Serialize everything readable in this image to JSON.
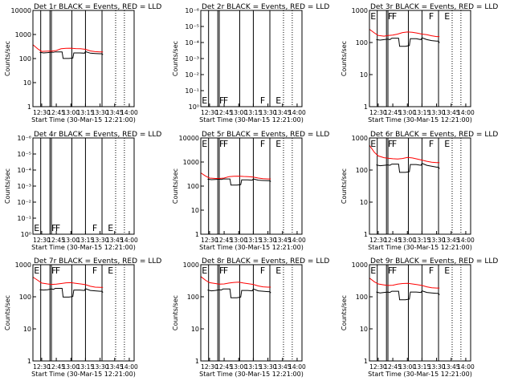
{
  "figure": {
    "xlabel": "Start Time (30-Mar-15 12:21:00)",
    "ylabel": "Counts/sec",
    "x_ticks": [
      "12:30",
      "12:45",
      "13:00",
      "13:15",
      "13:30",
      "13:45",
      "14:00"
    ],
    "x_range": [
      "12:21:00",
      "14:05:00"
    ],
    "colors": {
      "events": "#000000",
      "lld": "#ff0000",
      "axes": "#000000"
    }
  },
  "chart_data": [
    {
      "type": "line",
      "title": "Det 1r BLACK = Events, RED = LLD",
      "yscale": "log",
      "ylim": [
        1,
        12000
      ],
      "y_ticks": [
        "1",
        "10",
        "100",
        "1000",
        "10000"
      ],
      "markers": [],
      "series": [
        {
          "color": "#ff0000",
          "x": [
            "12:21",
            "12:26",
            "12:30",
            "12:36",
            "12:40",
            "12:45",
            "12:50",
            "12:55",
            "13:00",
            "13:05",
            "13:10",
            "13:15",
            "13:20",
            "13:25",
            "13:30",
            "13:33"
          ],
          "y": [
            420,
            280,
            220,
            225,
            225,
            240,
            285,
            295,
            300,
            290,
            285,
            270,
            230,
            215,
            210,
            210
          ]
        },
        {
          "color": "#000000",
          "x": [
            "12:28",
            "12:32",
            "12:36",
            "12:40",
            "12:42",
            "12:44",
            "12:51",
            "12:52",
            "12:58",
            "13:02",
            "13:03",
            "13:09",
            "13:14",
            "13:15",
            "13:20",
            "13:25",
            "13:30",
            "13:32",
            "13:33"
          ],
          "y": [
            200,
            190,
            195,
            205,
            200,
            210,
            210,
            110,
            110,
            115,
            190,
            190,
            185,
            215,
            185,
            180,
            175,
            175,
            160
          ]
        }
      ]
    },
    {
      "type": "line",
      "title": "Det 2r BLACK = Events, RED = LLD",
      "yscale": "log",
      "ylim": [
        1.2e-07,
        1.2
      ],
      "y_ticks": [
        "10⁰",
        "10⁻¹",
        "10⁻²",
        "10⁻³",
        "10⁻⁴",
        "10⁻⁵",
        "10⁻⁶"
      ],
      "markers": [
        "E",
        "F",
        "F",
        "F",
        "E"
      ],
      "series": []
    },
    {
      "type": "line",
      "title": "Det 3r BLACK = Events, RED = LLD",
      "yscale": "log",
      "ylim": [
        1,
        1200
      ],
      "y_ticks": [
        "1",
        "10",
        "100",
        "1000"
      ],
      "markers": [
        "E",
        "F",
        "F",
        "F",
        "E"
      ],
      "series": [
        {
          "color": "#ff0000",
          "x": [
            "12:21",
            "12:26",
            "12:30",
            "12:36",
            "12:40",
            "12:45",
            "12:50",
            "12:55",
            "13:00",
            "13:05",
            "13:10",
            "13:15",
            "13:20",
            "13:25",
            "13:30",
            "13:33"
          ],
          "y": [
            300,
            230,
            190,
            180,
            190,
            195,
            210,
            235,
            245,
            240,
            225,
            210,
            200,
            185,
            175,
            175
          ]
        },
        {
          "color": "#000000",
          "x": [
            "12:28",
            "12:32",
            "12:36",
            "12:40",
            "12:42",
            "12:44",
            "12:51",
            "12:52",
            "12:58",
            "13:02",
            "13:03",
            "13:09",
            "13:14",
            "13:15",
            "13:20",
            "13:25",
            "13:30",
            "13:32",
            "13:33"
          ],
          "y": [
            140,
            135,
            140,
            145,
            140,
            155,
            155,
            85,
            85,
            90,
            150,
            150,
            140,
            160,
            140,
            130,
            125,
            125,
            110
          ]
        }
      ]
    },
    {
      "type": "line",
      "title": "Det 4r BLACK = Events, RED = LLD",
      "yscale": "log",
      "ylim": [
        1.2e-07,
        1.2
      ],
      "y_ticks": [
        "10⁰",
        "10⁻¹",
        "10⁻²",
        "10⁻³",
        "10⁻⁴",
        "10⁻⁵",
        "10⁻⁶"
      ],
      "markers": [
        "E",
        "F",
        "F",
        "F",
        "E"
      ],
      "series": []
    },
    {
      "type": "line",
      "title": "Det 5r BLACK = Events, RED = LLD",
      "yscale": "log",
      "ylim": [
        1,
        12000
      ],
      "y_ticks": [
        "1",
        "10",
        "100",
        "1000",
        "10000"
      ],
      "markers": [
        "E",
        "F",
        "F",
        "F",
        "E"
      ],
      "series": [
        {
          "color": "#ff0000",
          "x": [
            "12:21",
            "12:26",
            "12:30",
            "12:36",
            "12:40",
            "12:45",
            "12:50",
            "12:55",
            "13:00",
            "13:05",
            "13:10",
            "13:15",
            "13:20",
            "13:25",
            "13:30",
            "13:33"
          ],
          "y": [
            400,
            290,
            240,
            230,
            230,
            240,
            275,
            285,
            290,
            280,
            275,
            265,
            240,
            225,
            220,
            220
          ]
        },
        {
          "color": "#000000",
          "x": [
            "12:28",
            "12:32",
            "12:36",
            "12:40",
            "12:42",
            "12:44",
            "12:51",
            "12:52",
            "12:58",
            "13:02",
            "13:03",
            "13:09",
            "13:14",
            "13:15",
            "13:20",
            "13:25",
            "13:30",
            "13:32",
            "13:33"
          ],
          "y": [
            215,
            205,
            210,
            215,
            210,
            220,
            220,
            120,
            120,
            125,
            200,
            200,
            195,
            220,
            195,
            190,
            185,
            185,
            170
          ]
        }
      ]
    },
    {
      "type": "line",
      "title": "Det 6r BLACK = Events, RED = LLD",
      "yscale": "log",
      "ylim": [
        1,
        1200
      ],
      "y_ticks": [
        "1",
        "10",
        "100",
        "1000"
      ],
      "markers": [
        "E",
        "F",
        "F",
        "F",
        "E"
      ],
      "series": [
        {
          "color": "#ff0000",
          "x": [
            "12:21",
            "12:26",
            "12:30",
            "12:36",
            "12:40",
            "12:45",
            "12:50",
            "12:55",
            "13:00",
            "13:05",
            "13:10",
            "13:15",
            "13:20",
            "13:25",
            "13:30",
            "13:33"
          ],
          "y": [
            700,
            420,
            320,
            280,
            270,
            260,
            255,
            265,
            285,
            275,
            255,
            235,
            215,
            200,
            195,
            195
          ]
        },
        {
          "color": "#000000",
          "x": [
            "12:28",
            "12:32",
            "12:36",
            "12:40",
            "12:42",
            "12:44",
            "12:51",
            "12:52",
            "12:58",
            "13:02",
            "13:03",
            "13:09",
            "13:14",
            "13:15",
            "13:20",
            "13:25",
            "13:30",
            "13:32",
            "13:33"
          ],
          "y": [
            165,
            155,
            160,
            165,
            160,
            175,
            175,
            95,
            95,
            100,
            170,
            170,
            160,
            185,
            160,
            150,
            140,
            140,
            125
          ]
        }
      ]
    },
    {
      "type": "line",
      "title": "Det 7r BLACK = Events, RED = LLD",
      "yscale": "log",
      "ylim": [
        1,
        1200
      ],
      "y_ticks": [
        "1",
        "10",
        "100",
        "1000"
      ],
      "markers": [
        "E",
        "F",
        "F",
        "F",
        "E"
      ],
      "series": [
        {
          "color": "#ff0000",
          "x": [
            "12:21",
            "12:26",
            "12:30",
            "12:36",
            "12:40",
            "12:45",
            "12:50",
            "12:55",
            "13:00",
            "13:05",
            "13:10",
            "13:15",
            "13:20",
            "13:25",
            "13:30",
            "13:33"
          ],
          "y": [
            480,
            380,
            310,
            290,
            280,
            285,
            300,
            315,
            320,
            305,
            290,
            275,
            245,
            230,
            225,
            225
          ]
        },
        {
          "color": "#000000",
          "x": [
            "12:28",
            "12:32",
            "12:36",
            "12:40",
            "12:42",
            "12:44",
            "12:51",
            "12:52",
            "12:58",
            "13:02",
            "13:03",
            "13:09",
            "13:14",
            "13:15",
            "13:20",
            "13:25",
            "13:30",
            "13:32",
            "13:33"
          ],
          "y": [
            190,
            185,
            190,
            200,
            195,
            210,
            210,
            110,
            110,
            115,
            185,
            185,
            180,
            205,
            180,
            175,
            170,
            170,
            155
          ]
        }
      ]
    },
    {
      "type": "line",
      "title": "Det 8r BLACK = Events, RED = LLD",
      "yscale": "log",
      "ylim": [
        1,
        1200
      ],
      "y_ticks": [
        "1",
        "10",
        "100",
        "1000"
      ],
      "markers": [
        "E",
        "F",
        "F",
        "F",
        "E"
      ],
      "series": [
        {
          "color": "#ff0000",
          "x": [
            "12:21",
            "12:26",
            "12:30",
            "12:36",
            "12:40",
            "12:45",
            "12:50",
            "12:55",
            "13:00",
            "13:05",
            "13:10",
            "13:15",
            "13:20",
            "13:25",
            "13:30",
            "13:33"
          ],
          "y": [
            500,
            380,
            320,
            300,
            285,
            290,
            310,
            325,
            330,
            310,
            295,
            280,
            250,
            235,
            230,
            230
          ]
        },
        {
          "color": "#000000",
          "x": [
            "12:28",
            "12:32",
            "12:36",
            "12:40",
            "12:42",
            "12:44",
            "12:51",
            "12:52",
            "12:58",
            "13:02",
            "13:03",
            "13:09",
            "13:14",
            "13:15",
            "13:20",
            "13:25",
            "13:30",
            "13:32",
            "13:33"
          ],
          "y": [
            185,
            175,
            180,
            190,
            185,
            200,
            200,
            105,
            105,
            110,
            180,
            180,
            175,
            200,
            175,
            170,
            165,
            165,
            150
          ]
        }
      ]
    },
    {
      "type": "line",
      "title": "Det 9r BLACK = Events, RED = LLD",
      "yscale": "log",
      "ylim": [
        1,
        1200
      ],
      "y_ticks": [
        "1",
        "10",
        "100",
        "1000"
      ],
      "markers": [
        "E",
        "F",
        "F",
        "F",
        "E"
      ],
      "series": [
        {
          "color": "#ff0000",
          "x": [
            "12:21",
            "12:26",
            "12:30",
            "12:36",
            "12:40",
            "12:45",
            "12:50",
            "12:55",
            "13:00",
            "13:05",
            "13:10",
            "13:15",
            "13:20",
            "13:25",
            "13:30",
            "13:33"
          ],
          "y": [
            450,
            340,
            290,
            270,
            260,
            265,
            285,
            300,
            305,
            290,
            275,
            260,
            235,
            220,
            215,
            215
          ]
        },
        {
          "color": "#000000",
          "x": [
            "12:28",
            "12:32",
            "12:36",
            "12:40",
            "12:42",
            "12:44",
            "12:51",
            "12:52",
            "12:58",
            "13:02",
            "13:03",
            "13:09",
            "13:14",
            "13:15",
            "13:20",
            "13:25",
            "13:30",
            "13:32",
            "13:33"
          ],
          "y": [
            160,
            150,
            155,
            160,
            155,
            170,
            170,
            90,
            90,
            95,
            160,
            160,
            155,
            175,
            155,
            150,
            145,
            145,
            130
          ]
        }
      ]
    }
  ]
}
